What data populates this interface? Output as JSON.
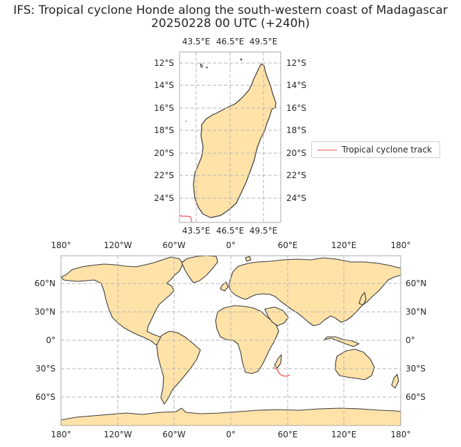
{
  "title_line1": "IFS: Tropical cyclone Honde along the south-western coast of Madagascar",
  "title_line2": "20250228 00 UTC (+240h)",
  "legend_label": "Tropical cyclone track",
  "colors": {
    "land": "#ffe2a8",
    "coast": "#3a3a3a",
    "track": "#ef4e4e",
    "grid": "#b5b5b5",
    "frame": "#a8a8a8"
  },
  "regional_map": {
    "lon_ticks": [
      "43.5°E",
      "46.5°E",
      "49.5°E"
    ],
    "lat_ticks": [
      "12°S",
      "14°S",
      "16°S",
      "18°S",
      "20°S",
      "22°S",
      "24°S"
    ]
  },
  "world_map": {
    "lon_ticks": [
      "180°",
      "120°W",
      "60°W",
      "0°",
      "60°E",
      "120°E",
      "180°"
    ],
    "lat_ticks": [
      "60°N",
      "30°N",
      "0°",
      "30°S",
      "60°S"
    ]
  }
}
